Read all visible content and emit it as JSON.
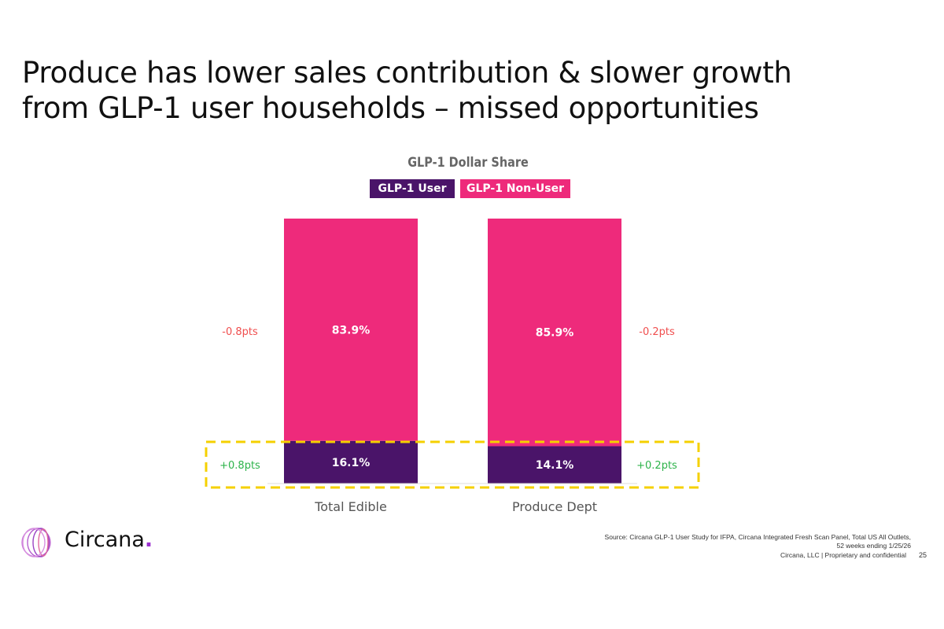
{
  "title_lines": [
    "Produce has lower sales contribution & slower growth",
    "from GLP-1 user households – missed opportunities"
  ],
  "chart_data": {
    "type": "bar",
    "stacked": true,
    "title": "GLP-1 Dollar Share",
    "categories": [
      "Total Edible",
      "Produce Dept"
    ],
    "series": [
      {
        "name": "GLP-1 User",
        "values": [
          16.1,
          14.1
        ],
        "labels": [
          "16.1%",
          "14.1%"
        ],
        "change": [
          "+0.8pts",
          "+0.2pts"
        ],
        "color": "#4a1469"
      },
      {
        "name": "GLP-1 Non-User",
        "values": [
          83.9,
          85.9
        ],
        "labels": [
          "83.9%",
          "85.9%"
        ],
        "change": [
          "-0.8pts",
          "-0.2pts"
        ],
        "color": "#ee2a7b"
      }
    ],
    "ylim": [
      0,
      100
    ],
    "legend": "top",
    "grid": false,
    "change_colors": {
      "positive": "#2db34a",
      "negative": "#f04e4e"
    },
    "highlight_color": "#f5d000"
  },
  "footer": {
    "source_line1": "Source: Circana GLP-1 User Study for IFPA, Circana Integrated Fresh Scan Panel, Total US All Outlets,",
    "source_line2": "52 weeks ending 1/25/26",
    "confidential": "Circana, LLC  |  Proprietary and confidential",
    "page_number": "25"
  },
  "logo": {
    "text": "Circana",
    "dot": "."
  }
}
